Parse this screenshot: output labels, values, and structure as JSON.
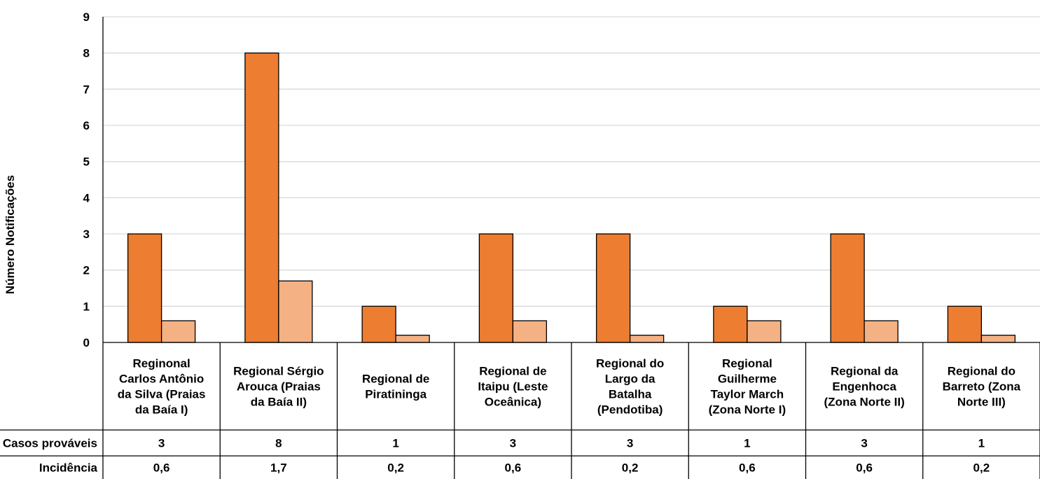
{
  "chart_data": {
    "type": "bar",
    "title": "",
    "xlabel": "",
    "ylabel": "Número Notificações",
    "ylim": [
      0,
      9
    ],
    "yticks": [
      0,
      1,
      2,
      3,
      4,
      5,
      6,
      7,
      8,
      9
    ],
    "grid": true,
    "categories": [
      [
        "Reginonal",
        "Carlos Antônio",
        "da Silva (Praias",
        "da Baía I)"
      ],
      [
        "Regional Sérgio",
        "Arouca (Praias",
        "da Baía II)"
      ],
      [
        "Regional de",
        "Piratininga"
      ],
      [
        "Regional de",
        "Itaipu (Leste",
        "Oceânica)"
      ],
      [
        "Regional do",
        "Largo da",
        "Batalha",
        "(Pendotiba)"
      ],
      [
        "Regional",
        "Guilherme",
        "Taylor March",
        "(Zona Norte I)"
      ],
      [
        "Regional da",
        "Engenhoca",
        "(Zona Norte II)"
      ],
      [
        "Regional do",
        "Barreto (Zona",
        "Norte III)"
      ]
    ],
    "series": [
      {
        "name": "Casos prováveis",
        "color": "#ED7D31",
        "values": [
          3,
          8,
          1,
          3,
          3,
          1,
          3,
          1
        ],
        "labels": [
          "3",
          "8",
          "1",
          "3",
          "3",
          "1",
          "3",
          "1"
        ]
      },
      {
        "name": "Incidência",
        "color": "#F4B183",
        "values": [
          0.6,
          1.7,
          0.2,
          0.6,
          0.2,
          0.6,
          0.6,
          0.2
        ],
        "labels": [
          "0,6",
          "1,7",
          "0,2",
          "0,6",
          "0,2",
          "0,6",
          "0,6",
          "0,2"
        ]
      }
    ],
    "table_row_labels": [
      "Casos prováveis",
      "Incidência"
    ]
  }
}
